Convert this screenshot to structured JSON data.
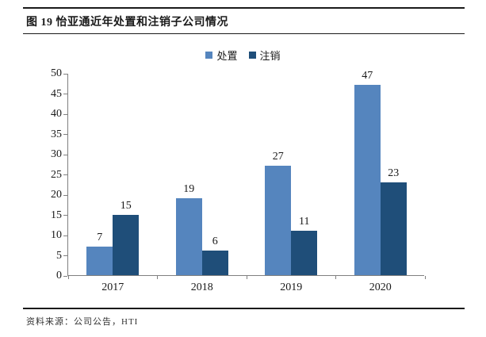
{
  "header": {
    "title": "图 19 怡亚通近年处置和注销子公司情况"
  },
  "footer": {
    "source": "资料来源：公司公告，HTI"
  },
  "colors": {
    "series1": "#5585BE",
    "series2": "#1F4E79",
    "axis": "#808080",
    "text": "#1a1a1a"
  },
  "chart_data": {
    "type": "bar",
    "categories": [
      "2017",
      "2018",
      "2019",
      "2020"
    ],
    "series": [
      {
        "name": "处置",
        "color": "#5585BE",
        "values": [
          7,
          19,
          27,
          47
        ]
      },
      {
        "name": "注销",
        "color": "#1F4E79",
        "values": [
          15,
          6,
          11,
          23
        ]
      }
    ],
    "title": "图 19 怡亚通近年处置和注销子公司情况",
    "xlabel": "",
    "ylabel": "",
    "ylim": [
      0,
      50
    ],
    "ytick_step": 5,
    "legend_position": "top",
    "grid": false,
    "data_labels": true,
    "source": "资料来源：公司公告，HTI"
  }
}
